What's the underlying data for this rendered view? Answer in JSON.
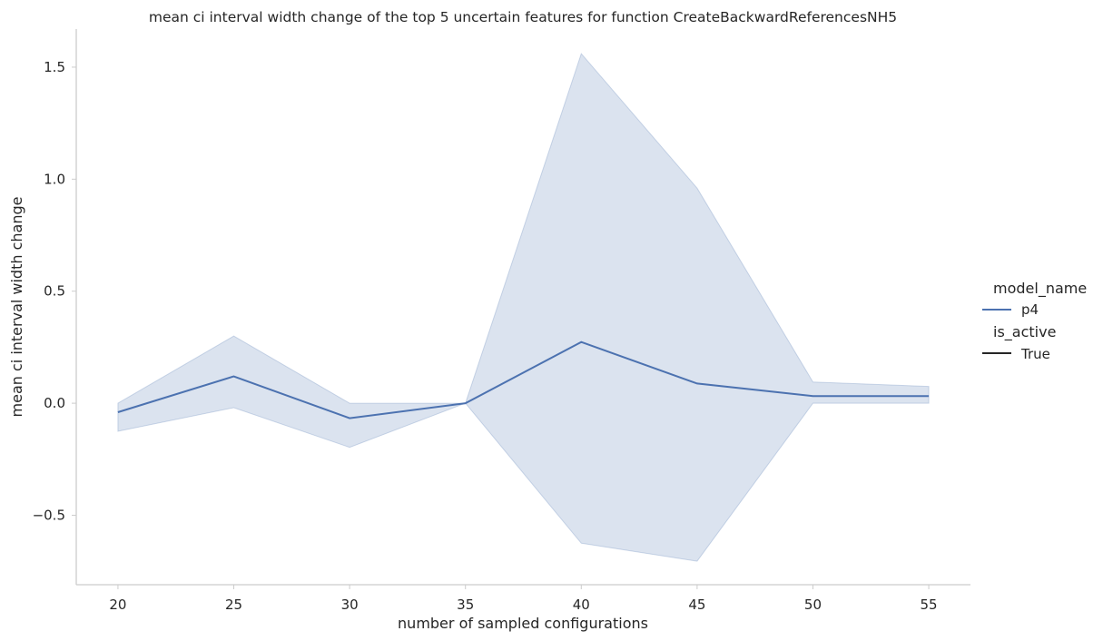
{
  "chart_data": {
    "type": "line",
    "title": "mean ci interval width change of the top 5 uncertain features for function CreateBackwardReferencesNH5",
    "xlabel": "number of sampled configurations",
    "ylabel": "mean ci interval width change",
    "x": [
      20,
      25,
      30,
      35,
      40,
      45,
      50,
      55
    ],
    "xticks": [
      20,
      25,
      30,
      35,
      40,
      45,
      50,
      55
    ],
    "yticks": [
      -0.5,
      0.0,
      0.5,
      1.0,
      1.5
    ],
    "ytick_labels": [
      "−0.5",
      "0.0",
      "0.5",
      "1.0",
      "1.5"
    ],
    "xlim": [
      18.2,
      56.8
    ],
    "ylim": [
      -0.81,
      1.67
    ],
    "grid": false,
    "series": [
      {
        "name": "p4",
        "color": "#4c72b0",
        "values": [
          -0.04,
          0.12,
          -0.067,
          0.0,
          0.273,
          0.088,
          0.032,
          0.032
        ],
        "ci_upper": [
          0.0,
          0.3,
          0.0,
          0.0,
          1.56,
          0.96,
          0.095,
          0.075
        ],
        "ci_lower": [
          -0.125,
          -0.02,
          -0.197,
          0.0,
          -0.625,
          -0.705,
          0.0,
          0.0
        ]
      }
    ],
    "legend": {
      "placement": "right",
      "hue_title": "model_name",
      "hue_entries": [
        {
          "label": "p4",
          "color": "#4c72b0"
        }
      ],
      "style_title": "is_active",
      "style_entries": [
        {
          "label": "True",
          "color": "#262626"
        }
      ]
    }
  }
}
